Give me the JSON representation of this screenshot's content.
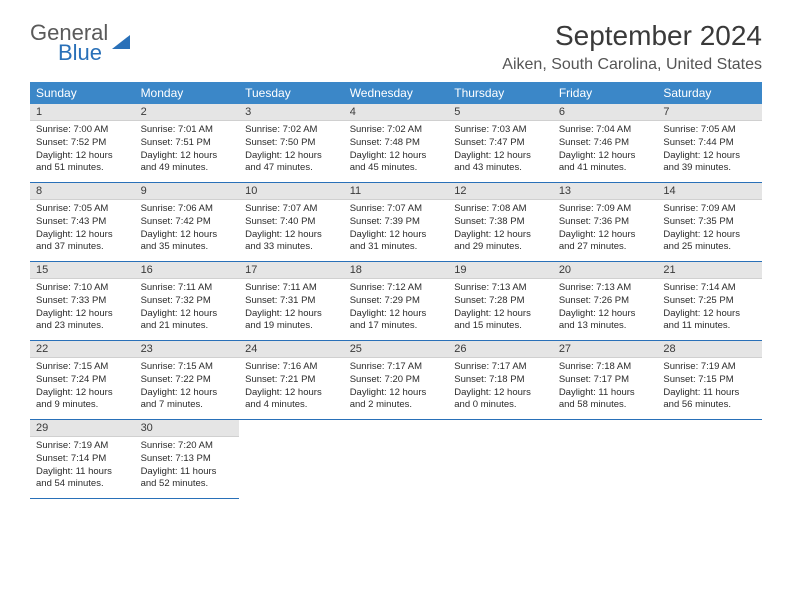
{
  "logo": {
    "general": "General",
    "blue": "Blue"
  },
  "title": "September 2024",
  "location": "Aiken, South Carolina, United States",
  "dayNames": [
    "Sunday",
    "Monday",
    "Tuesday",
    "Wednesday",
    "Thursday",
    "Friday",
    "Saturday"
  ],
  "colors": {
    "header_bg": "#3b87c8",
    "accent": "#2970b8",
    "day_header_bg": "#e5e5e5"
  },
  "days": [
    {
      "num": "1",
      "sunrise": "7:00 AM",
      "sunset": "7:52 PM",
      "daylight": "12 hours and 51 minutes."
    },
    {
      "num": "2",
      "sunrise": "7:01 AM",
      "sunset": "7:51 PM",
      "daylight": "12 hours and 49 minutes."
    },
    {
      "num": "3",
      "sunrise": "7:02 AM",
      "sunset": "7:50 PM",
      "daylight": "12 hours and 47 minutes."
    },
    {
      "num": "4",
      "sunrise": "7:02 AM",
      "sunset": "7:48 PM",
      "daylight": "12 hours and 45 minutes."
    },
    {
      "num": "5",
      "sunrise": "7:03 AM",
      "sunset": "7:47 PM",
      "daylight": "12 hours and 43 minutes."
    },
    {
      "num": "6",
      "sunrise": "7:04 AM",
      "sunset": "7:46 PM",
      "daylight": "12 hours and 41 minutes."
    },
    {
      "num": "7",
      "sunrise": "7:05 AM",
      "sunset": "7:44 PM",
      "daylight": "12 hours and 39 minutes."
    },
    {
      "num": "8",
      "sunrise": "7:05 AM",
      "sunset": "7:43 PM",
      "daylight": "12 hours and 37 minutes."
    },
    {
      "num": "9",
      "sunrise": "7:06 AM",
      "sunset": "7:42 PM",
      "daylight": "12 hours and 35 minutes."
    },
    {
      "num": "10",
      "sunrise": "7:07 AM",
      "sunset": "7:40 PM",
      "daylight": "12 hours and 33 minutes."
    },
    {
      "num": "11",
      "sunrise": "7:07 AM",
      "sunset": "7:39 PM",
      "daylight": "12 hours and 31 minutes."
    },
    {
      "num": "12",
      "sunrise": "7:08 AM",
      "sunset": "7:38 PM",
      "daylight": "12 hours and 29 minutes."
    },
    {
      "num": "13",
      "sunrise": "7:09 AM",
      "sunset": "7:36 PM",
      "daylight": "12 hours and 27 minutes."
    },
    {
      "num": "14",
      "sunrise": "7:09 AM",
      "sunset": "7:35 PM",
      "daylight": "12 hours and 25 minutes."
    },
    {
      "num": "15",
      "sunrise": "7:10 AM",
      "sunset": "7:33 PM",
      "daylight": "12 hours and 23 minutes."
    },
    {
      "num": "16",
      "sunrise": "7:11 AM",
      "sunset": "7:32 PM",
      "daylight": "12 hours and 21 minutes."
    },
    {
      "num": "17",
      "sunrise": "7:11 AM",
      "sunset": "7:31 PM",
      "daylight": "12 hours and 19 minutes."
    },
    {
      "num": "18",
      "sunrise": "7:12 AM",
      "sunset": "7:29 PM",
      "daylight": "12 hours and 17 minutes."
    },
    {
      "num": "19",
      "sunrise": "7:13 AM",
      "sunset": "7:28 PM",
      "daylight": "12 hours and 15 minutes."
    },
    {
      "num": "20",
      "sunrise": "7:13 AM",
      "sunset": "7:26 PM",
      "daylight": "12 hours and 13 minutes."
    },
    {
      "num": "21",
      "sunrise": "7:14 AM",
      "sunset": "7:25 PM",
      "daylight": "12 hours and 11 minutes."
    },
    {
      "num": "22",
      "sunrise": "7:15 AM",
      "sunset": "7:24 PM",
      "daylight": "12 hours and 9 minutes."
    },
    {
      "num": "23",
      "sunrise": "7:15 AM",
      "sunset": "7:22 PM",
      "daylight": "12 hours and 7 minutes."
    },
    {
      "num": "24",
      "sunrise": "7:16 AM",
      "sunset": "7:21 PM",
      "daylight": "12 hours and 4 minutes."
    },
    {
      "num": "25",
      "sunrise": "7:17 AM",
      "sunset": "7:20 PM",
      "daylight": "12 hours and 2 minutes."
    },
    {
      "num": "26",
      "sunrise": "7:17 AM",
      "sunset": "7:18 PM",
      "daylight": "12 hours and 0 minutes."
    },
    {
      "num": "27",
      "sunrise": "7:18 AM",
      "sunset": "7:17 PM",
      "daylight": "11 hours and 58 minutes."
    },
    {
      "num": "28",
      "sunrise": "7:19 AM",
      "sunset": "7:15 PM",
      "daylight": "11 hours and 56 minutes."
    },
    {
      "num": "29",
      "sunrise": "7:19 AM",
      "sunset": "7:14 PM",
      "daylight": "11 hours and 54 minutes."
    },
    {
      "num": "30",
      "sunrise": "7:20 AM",
      "sunset": "7:13 PM",
      "daylight": "11 hours and 52 minutes."
    }
  ],
  "labels": {
    "sunrise": "Sunrise: ",
    "sunset": "Sunset: ",
    "daylight": "Daylight: "
  }
}
